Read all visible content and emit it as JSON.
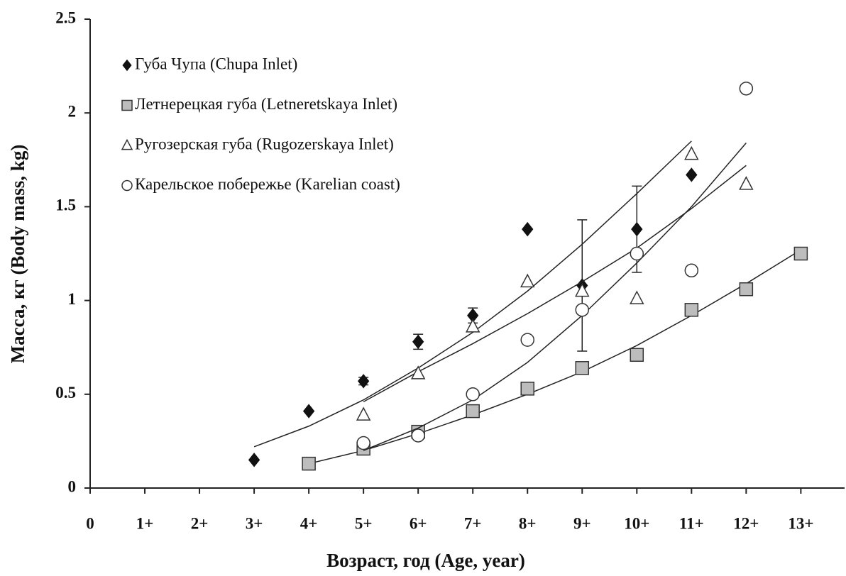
{
  "chart_data": {
    "type": "scatter",
    "xlabel": "Возраст, год (Age, year)",
    "ylabel": "Масса, кг (Body mass, kg)",
    "xlim": [
      0,
      13.8
    ],
    "ylim": [
      0,
      2.5
    ],
    "xticks": [
      0,
      {
        "value": 1,
        "label": "1+"
      },
      {
        "value": 2,
        "label": "2+"
      },
      {
        "value": 3,
        "label": "3+"
      },
      {
        "value": 4,
        "label": "4+"
      },
      {
        "value": 5,
        "label": "5+"
      },
      {
        "value": 6,
        "label": "6+"
      },
      {
        "value": 7,
        "label": "7+"
      },
      {
        "value": 8,
        "label": "8+"
      },
      {
        "value": 9,
        "label": "9+"
      },
      {
        "value": 10,
        "label": "10+"
      },
      {
        "value": 11,
        "label": "11+"
      },
      {
        "value": 12,
        "label": "12+"
      },
      {
        "value": 13,
        "label": "13+"
      }
    ],
    "yticks": [
      0,
      0.5,
      1,
      1.5,
      2,
      2.5
    ],
    "legend": "upper left",
    "series": [
      {
        "name": "Губа Чупа (Chupa Inlet)",
        "marker": "diamond",
        "color": "#111111",
        "x": [
          3,
          4,
          5,
          6,
          7,
          8,
          9,
          10,
          11
        ],
        "values": [
          0.15,
          0.41,
          0.57,
          0.78,
          0.92,
          1.38,
          1.08,
          1.38,
          1.67
        ],
        "errors": [
          null,
          null,
          0.02,
          0.04,
          0.04,
          null,
          0.35,
          0.23,
          null
        ],
        "trend": [
          0.22,
          0.33,
          0.47,
          0.64,
          0.83,
          1.05,
          1.3,
          1.57,
          1.85
        ]
      },
      {
        "name": "Летнерецкая губа (Letneretskaya Inlet)",
        "marker": "square",
        "color": "#bdbdbd",
        "x": [
          4,
          5,
          6,
          7,
          8,
          9,
          10,
          11,
          12,
          13
        ],
        "values": [
          0.13,
          0.21,
          0.3,
          0.41,
          0.53,
          0.64,
          0.71,
          0.95,
          1.06,
          1.25
        ],
        "trend": [
          0.13,
          0.2,
          0.29,
          0.39,
          0.5,
          0.62,
          0.76,
          0.92,
          1.09,
          1.27
        ]
      },
      {
        "name": "Ругозерская губа (Rugozerskaya Inlet)",
        "marker": "triangle",
        "color": "#ffffff",
        "x": [
          5,
          6,
          7,
          8,
          9,
          10,
          11,
          12
        ],
        "values": [
          0.39,
          0.61,
          0.86,
          1.1,
          1.05,
          1.01,
          1.78,
          1.62
        ],
        "trend": [
          0.46,
          0.62,
          0.77,
          0.93,
          1.1,
          1.28,
          1.49,
          1.72
        ]
      },
      {
        "name": "Карельское побережье (Karelian coast)",
        "marker": "circle",
        "color": "#ffffff",
        "x": [
          5,
          6,
          7,
          8,
          9,
          10,
          11,
          12
        ],
        "values": [
          0.24,
          0.28,
          0.5,
          0.79,
          0.95,
          1.25,
          1.16,
          2.13
        ],
        "trend": [
          0.2,
          0.32,
          0.47,
          0.67,
          0.92,
          1.2,
          1.5,
          1.84
        ]
      }
    ]
  }
}
